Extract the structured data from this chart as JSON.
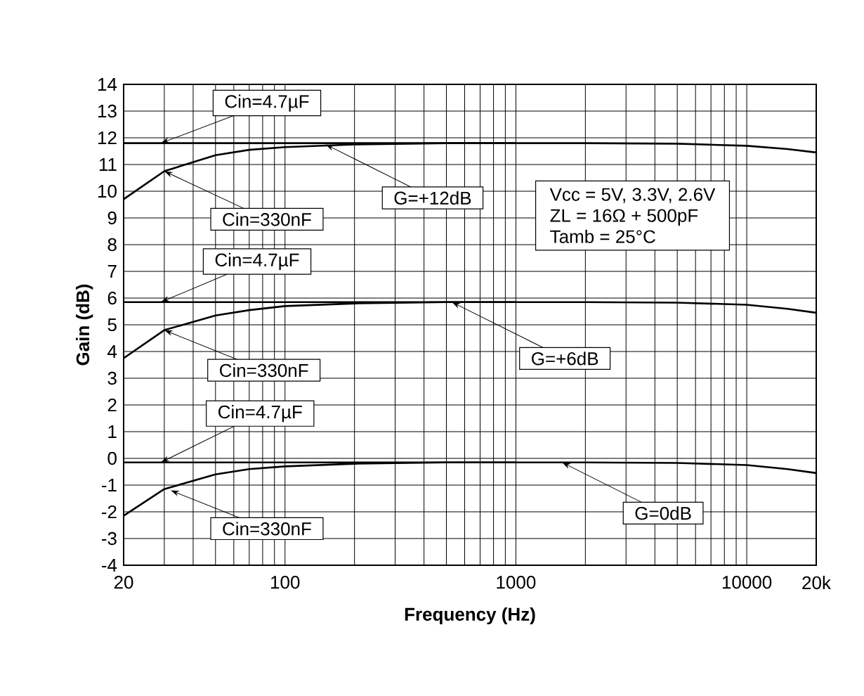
{
  "chart_data": {
    "type": "line",
    "xlabel": "Frequency (Hz)",
    "ylabel": "Gain (dB)",
    "log": "x",
    "xlim": [
      20,
      20000
    ],
    "ylim": [
      -4,
      14
    ],
    "xticks": [
      20,
      100,
      1000,
      10000,
      {
        "value": 20000,
        "label": "20k"
      }
    ],
    "yticks": [
      -4,
      -3,
      -2,
      -1,
      0,
      1,
      2,
      3,
      4,
      5,
      6,
      7,
      8,
      9,
      10,
      11,
      12,
      13,
      14
    ],
    "grid": true,
    "marker": "none",
    "line_style": "solid",
    "series": [
      {
        "color": "#000000",
        "x": [
          20,
          30,
          50,
          100,
          200,
          500,
          1000,
          2000,
          5000,
          10000,
          15000,
          20000
        ],
        "values": [
          11.8,
          11.8,
          11.8,
          11.8,
          11.8,
          11.8,
          11.8,
          11.8,
          11.78,
          11.7,
          11.58,
          11.45
        ]
      },
      {
        "color": "#000000",
        "x": [
          20,
          30,
          50,
          70,
          100,
          200,
          500,
          1000
        ],
        "values": [
          9.7,
          10.75,
          11.35,
          11.55,
          11.65,
          11.75,
          11.8,
          11.8
        ]
      },
      {
        "color": "#000000",
        "x": [
          20,
          30,
          50,
          100,
          200,
          500,
          1000,
          2000,
          5000,
          10000,
          15000,
          20000
        ],
        "values": [
          5.85,
          5.85,
          5.85,
          5.85,
          5.85,
          5.85,
          5.85,
          5.85,
          5.83,
          5.75,
          5.6,
          5.45
        ]
      },
      {
        "color": "#000000",
        "x": [
          20,
          30,
          50,
          70,
          100,
          200,
          500,
          1000
        ],
        "values": [
          3.75,
          4.8,
          5.35,
          5.55,
          5.7,
          5.8,
          5.85,
          5.85
        ]
      },
      {
        "color": "#000000",
        "x": [
          20,
          30,
          50,
          100,
          200,
          500,
          1000,
          2000,
          5000,
          10000,
          15000,
          20000
        ],
        "values": [
          -0.15,
          -0.15,
          -0.15,
          -0.15,
          -0.15,
          -0.15,
          -0.15,
          -0.15,
          -0.17,
          -0.25,
          -0.4,
          -0.55
        ]
      },
      {
        "color": "#000000",
        "x": [
          20,
          30,
          50,
          70,
          100,
          200,
          500,
          1000
        ],
        "values": [
          -2.15,
          -1.15,
          -0.6,
          -0.4,
          -0.3,
          -0.2,
          -0.15,
          -0.15
        ]
      }
    ],
    "annotations": [
      {
        "text": "Cin=4.7µF",
        "x": 29,
        "y": 11.8
      },
      {
        "text": "Cin=330nF",
        "x": 30,
        "y": 10.75
      },
      {
        "text": "G=+12dB",
        "x": 150,
        "y": 11.75
      },
      {
        "text": "Cin=4.7µF",
        "x": 29,
        "y": 5.85
      },
      {
        "text": "Cin=330nF",
        "x": 30,
        "y": 4.8
      },
      {
        "text": "G=+6dB",
        "x": 528,
        "y": 5.85
      },
      {
        "text": "Cin=4.7µF",
        "x": 29,
        "y": -0.15
      },
      {
        "text": "Cin=330nF",
        "x": 32,
        "y": -1.2
      },
      {
        "text": "G=0dB",
        "x": 1585,
        "y": -0.15
      },
      "Vcc = 5V, 3.3V, 2.6V",
      "ZL = 16Ω + 500pF",
      "Tamb = 25°C"
    ]
  }
}
